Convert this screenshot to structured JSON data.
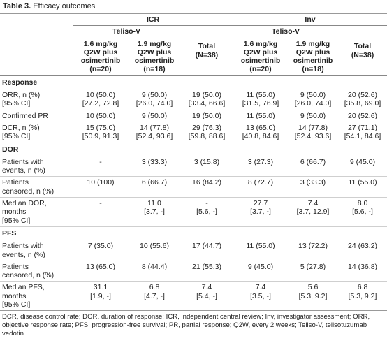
{
  "caption": {
    "label": "Table 3.",
    "text": "Efficacy outcomes"
  },
  "header": {
    "groups": [
      {
        "label": "ICR",
        "sub": "Teliso-V",
        "columns": [
          [
            "1.6 mg/kg",
            "Q2W plus",
            "osimertinib",
            "(n=20)"
          ],
          [
            "1.9 mg/kg",
            "Q2W plus",
            "osimertinib",
            "(n=18)"
          ]
        ],
        "total": [
          "Total",
          "(N=38)"
        ]
      },
      {
        "label": "Inv",
        "sub": "Teliso-V",
        "columns": [
          [
            "1.6 mg/kg",
            "Q2W plus",
            "osimertinib",
            "(n=20)"
          ],
          [
            "1.9 mg/kg",
            "Q2W plus",
            "osimertinib",
            "(n=18)"
          ]
        ],
        "total": [
          "Total",
          "(N=38)"
        ]
      }
    ]
  },
  "sections": [
    {
      "title": "Response",
      "rows": [
        {
          "label": [
            "ORR, n (%)",
            "[95% CI]"
          ],
          "cells": [
            [
              "10 (50.0)",
              "[27.2, 72.8]"
            ],
            [
              "9 (50.0)",
              "[26.0, 74.0]"
            ],
            [
              "19 (50.0)",
              "[33.4, 66.6]"
            ],
            [
              "11 (55.0)",
              "[31.5, 76.9]"
            ],
            [
              "9 (50.0)",
              "[26.0, 74.0]"
            ],
            [
              "20 (52.6)",
              "[35.8, 69.0]"
            ]
          ]
        },
        {
          "label": [
            "Confirmed PR"
          ],
          "cells": [
            [
              "10 (50.0)"
            ],
            [
              "9 (50.0)"
            ],
            [
              "19 (50.0)"
            ],
            [
              "11 (55.0)"
            ],
            [
              "9 (50.0)"
            ],
            [
              "20 (52.6)"
            ]
          ]
        },
        {
          "label": [
            "DCR, n (%)",
            "[95% CI]"
          ],
          "cells": [
            [
              "15 (75.0)",
              "[50.9, 91.3]"
            ],
            [
              "14 (77.8)",
              "[52.4, 93.6]"
            ],
            [
              "29 (76.3)",
              "[59.8, 88.6]"
            ],
            [
              "13 (65.0)",
              "[40.8, 84.6]"
            ],
            [
              "14 (77.8)",
              "[52.4, 93.6]"
            ],
            [
              "27 (71.1)",
              "[54.1, 84.6]"
            ]
          ]
        }
      ]
    },
    {
      "title": "DOR",
      "rows": [
        {
          "label": [
            "Patients with",
            "events, n (%)"
          ],
          "cells": [
            [
              "-"
            ],
            [
              "3 (33.3)"
            ],
            [
              "3 (15.8)"
            ],
            [
              "3 (27.3)"
            ],
            [
              "6 (66.7)"
            ],
            [
              "9 (45.0)"
            ]
          ]
        },
        {
          "label": [
            "Patients",
            "censored, n (%)"
          ],
          "cells": [
            [
              "10 (100)"
            ],
            [
              "6 (66.7)"
            ],
            [
              "16 (84.2)"
            ],
            [
              "8 (72.7)"
            ],
            [
              "3 (33.3)"
            ],
            [
              "11 (55.0)"
            ]
          ]
        },
        {
          "label": [
            "Median DOR,",
            "months",
            "[95% CI]"
          ],
          "cells": [
            [
              "-"
            ],
            [
              "11.0",
              "[3.7, -]"
            ],
            [
              "-",
              "[5.6, -]"
            ],
            [
              "27.7",
              "[3.7, -]"
            ],
            [
              "7.4",
              "[3.7, 12.9]"
            ],
            [
              "8.0",
              "[5.6, -]"
            ]
          ]
        }
      ]
    },
    {
      "title": "PFS",
      "rows": [
        {
          "label": [
            "Patients with",
            "events, n (%)"
          ],
          "cells": [
            [
              "7 (35.0)"
            ],
            [
              "10 (55.6)"
            ],
            [
              "17 (44.7)"
            ],
            [
              "11 (55.0)"
            ],
            [
              "13 (72.2)"
            ],
            [
              "24 (63.2)"
            ]
          ]
        },
        {
          "label": [
            "Patients",
            "censored, n (%)"
          ],
          "cells": [
            [
              "13 (65.0)"
            ],
            [
              "8 (44.4)"
            ],
            [
              "21 (55.3)"
            ],
            [
              "9 (45.0)"
            ],
            [
              "5 (27.8)"
            ],
            [
              "14 (36.8)"
            ]
          ]
        },
        {
          "label": [
            "Median PFS,",
            "months",
            "[95% CI]"
          ],
          "cells": [
            [
              "31.1",
              "[1.9, -]"
            ],
            [
              "6.8",
              "[4.7, -]"
            ],
            [
              "7.4",
              "[5.4, -]"
            ],
            [
              "7.4",
              "[3.5, -]"
            ],
            [
              "5.6",
              "[5.3, 9.2]"
            ],
            [
              "6.8",
              "[5.3, 9.2]"
            ]
          ]
        }
      ]
    }
  ],
  "footnote": "DCR, disease control rate; DOR, duration of response; ICR, independent central review; Inv, investigator assessment; ORR, objective response rate; PFS, progression-free survival; PR, partial response; Q2W, every 2 weeks; Teliso-V, telisotuzumab vedotin."
}
